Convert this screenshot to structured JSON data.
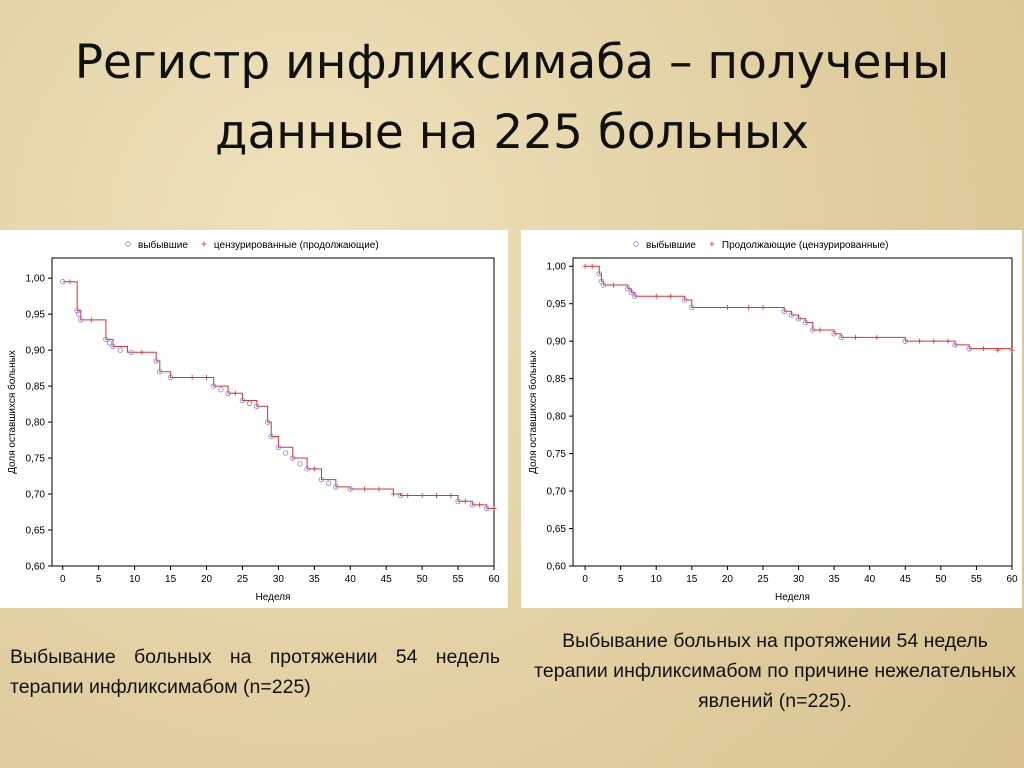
{
  "title": "Регистр инфликсимаба – получены данные на 225 больных",
  "captions": [
    "Выбывание больных на протяжении 54 недель терапии инфликсимабом (n=225)",
    "Выбывание больных на протяжении 54 недель терапии инфликсимабом по причине нежелательных явлений (n=225)."
  ],
  "chart_data": [
    {
      "type": "step",
      "xlabel": "Неделя",
      "ylabel": "Доля оставшихся больных",
      "xlim": [
        -1.5,
        60
      ],
      "ylim": [
        0.6,
        1.028
      ],
      "xticks": [
        0,
        5,
        10,
        15,
        20,
        25,
        30,
        35,
        40,
        45,
        50,
        55,
        60
      ],
      "yticks": [
        {
          "value": 0.6,
          "label": "0,60"
        },
        {
          "value": 0.65,
          "label": "0,65"
        },
        {
          "value": 0.7,
          "label": "0,70"
        },
        {
          "value": 0.75,
          "label": "0,75"
        },
        {
          "value": 0.8,
          "label": "0,80"
        },
        {
          "value": 0.85,
          "label": "0,85"
        },
        {
          "value": 0.9,
          "label": "0,90"
        },
        {
          "value": 0.95,
          "label": "0,95"
        },
        {
          "value": 1.0,
          "label": "1,00"
        }
      ],
      "line_color": "#e03030",
      "curve": {
        "x": [
          0,
          1,
          2,
          2.5,
          6,
          7,
          9,
          13,
          13.5,
          15,
          21,
          23,
          25,
          27,
          28.5,
          29,
          30,
          32,
          34,
          36,
          38,
          40,
          46,
          47,
          55,
          57,
          59,
          60
        ],
        "values": [
          0.995,
          0.995,
          0.955,
          0.942,
          0.915,
          0.905,
          0.897,
          0.885,
          0.87,
          0.862,
          0.85,
          0.84,
          0.83,
          0.822,
          0.8,
          0.78,
          0.765,
          0.75,
          0.735,
          0.72,
          0.71,
          0.707,
          0.7,
          0.698,
          0.69,
          0.685,
          0.68,
          0.68
        ]
      },
      "series": [
        {
          "name": "выбывшие",
          "color": "#8080ff",
          "marker": "circle",
          "x": [
            0,
            2,
            2.2,
            2.5,
            6,
            6.5,
            7,
            8,
            9.5,
            13,
            13.5,
            15,
            21,
            22,
            23,
            25,
            26,
            27,
            28.5,
            29,
            30,
            31,
            32,
            33,
            34,
            36,
            37,
            38,
            40,
            47,
            55,
            57,
            59
          ],
          "values": [
            0.995,
            0.955,
            0.95,
            0.942,
            0.915,
            0.91,
            0.905,
            0.9,
            0.897,
            0.885,
            0.87,
            0.862,
            0.85,
            0.845,
            0.84,
            0.83,
            0.826,
            0.822,
            0.8,
            0.78,
            0.765,
            0.757,
            0.75,
            0.742,
            0.735,
            0.72,
            0.715,
            0.71,
            0.707,
            0.698,
            0.69,
            0.685,
            0.68
          ]
        },
        {
          "name": "цензурированные (продолжающие)",
          "color": "#e03030",
          "marker": "plus",
          "x": [
            1,
            4,
            11,
            18,
            20,
            24,
            35,
            42,
            44,
            46,
            48,
            50,
            52,
            54,
            56,
            58,
            60
          ],
          "values": [
            0.995,
            0.942,
            0.897,
            0.862,
            0.862,
            0.84,
            0.735,
            0.707,
            0.707,
            0.7,
            0.698,
            0.698,
            0.698,
            0.698,
            0.69,
            0.685,
            0.68
          ]
        }
      ]
    },
    {
      "type": "step",
      "xlabel": "Неделя",
      "ylabel": "Доля оставшихся больных",
      "xlim": [
        -1.7,
        60
      ],
      "ylim": [
        0.6,
        1.011
      ],
      "xticks": [
        0,
        5,
        10,
        15,
        20,
        25,
        30,
        35,
        40,
        45,
        50,
        55,
        60
      ],
      "yticks": [
        {
          "value": 0.6,
          "label": "0,60"
        },
        {
          "value": 0.65,
          "label": "0,65"
        },
        {
          "value": 0.7,
          "label": "0,70"
        },
        {
          "value": 0.75,
          "label": "0,75"
        },
        {
          "value": 0.8,
          "label": "0,80"
        },
        {
          "value": 0.85,
          "label": "0,85"
        },
        {
          "value": 0.9,
          "label": "0,90"
        },
        {
          "value": 0.95,
          "label": "0,95"
        },
        {
          "value": 1.0,
          "label": "1,00"
        }
      ],
      "line_color": "#e03030",
      "curve": {
        "x": [
          0,
          2,
          2.3,
          2.6,
          6,
          6.5,
          7,
          14,
          15,
          28,
          29,
          30,
          31,
          32,
          35,
          36,
          45,
          52,
          54,
          60
        ],
        "values": [
          1.0,
          0.99,
          0.98,
          0.975,
          0.97,
          0.965,
          0.96,
          0.955,
          0.945,
          0.94,
          0.935,
          0.93,
          0.925,
          0.915,
          0.91,
          0.905,
          0.9,
          0.895,
          0.89,
          0.888
        ]
      },
      "series": [
        {
          "name": "выбывшие",
          "color": "#8080ff",
          "marker": "circle",
          "x": [
            2,
            2.3,
            2.6,
            6,
            6.5,
            7,
            14,
            15,
            28,
            29,
            30,
            31,
            32,
            35,
            36,
            45,
            52,
            54
          ],
          "values": [
            0.99,
            0.98,
            0.975,
            0.97,
            0.965,
            0.96,
            0.955,
            0.945,
            0.94,
            0.935,
            0.93,
            0.925,
            0.915,
            0.91,
            0.905,
            0.9,
            0.895,
            0.89
          ]
        },
        {
          "name": "Продолжающие (цензурированные)",
          "color": "#e03030",
          "marker": "plus",
          "x": [
            0,
            1,
            4,
            10,
            12,
            20,
            23,
            25,
            33,
            38,
            41,
            47,
            49,
            51,
            56,
            58,
            60
          ],
          "values": [
            1.0,
            1.0,
            0.975,
            0.96,
            0.96,
            0.945,
            0.945,
            0.945,
            0.915,
            0.905,
            0.905,
            0.9,
            0.9,
            0.9,
            0.89,
            0.888,
            0.888
          ]
        }
      ]
    }
  ]
}
